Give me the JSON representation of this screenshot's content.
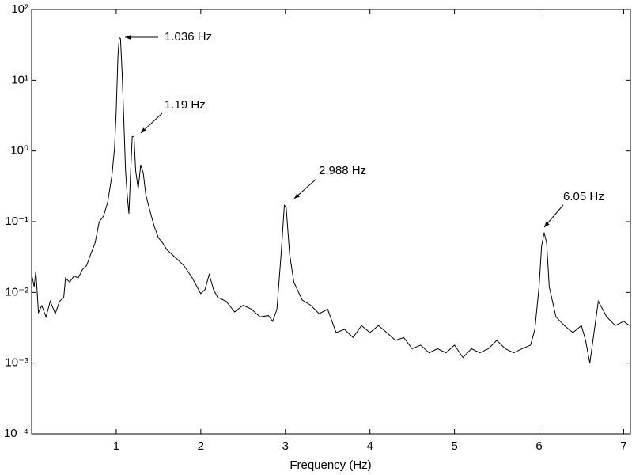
{
  "chart_data": {
    "type": "line",
    "xlabel": "Frequency (Hz)",
    "yscale": "log",
    "grid": false,
    "color": "#000000",
    "x": [
      0.0,
      0.03,
      0.05,
      0.08,
      0.12,
      0.17,
      0.22,
      0.28,
      0.33,
      0.38,
      0.4,
      0.45,
      0.5,
      0.55,
      0.6,
      0.65,
      0.7,
      0.75,
      0.8,
      0.85,
      0.9,
      0.95,
      0.98,
      1.0,
      1.02,
      1.036,
      1.05,
      1.07,
      1.09,
      1.11,
      1.13,
      1.15,
      1.17,
      1.19,
      1.21,
      1.23,
      1.26,
      1.29,
      1.32,
      1.35,
      1.4,
      1.45,
      1.5,
      1.55,
      1.6,
      1.7,
      1.8,
      1.9,
      2.0,
      2.05,
      2.1,
      2.15,
      2.2,
      2.3,
      2.4,
      2.5,
      2.6,
      2.7,
      2.8,
      2.85,
      2.9,
      2.95,
      2.988,
      3.01,
      3.05,
      3.1,
      3.2,
      3.3,
      3.4,
      3.5,
      3.6,
      3.7,
      3.8,
      3.9,
      4.0,
      4.1,
      4.2,
      4.3,
      4.4,
      4.5,
      4.6,
      4.7,
      4.8,
      4.9,
      5.0,
      5.1,
      5.2,
      5.3,
      5.4,
      5.5,
      5.6,
      5.7,
      5.8,
      5.9,
      5.95,
      6.0,
      6.03,
      6.06,
      6.09,
      6.12,
      6.2,
      6.3,
      6.4,
      6.5,
      6.55,
      6.6,
      6.65,
      6.7,
      6.8,
      6.9,
      7.0,
      7.07
    ],
    "values": [
      0.018,
      0.012,
      0.02,
      0.0052,
      0.0065,
      0.0045,
      0.0075,
      0.005,
      0.0075,
      0.0085,
      0.016,
      0.014,
      0.017,
      0.016,
      0.021,
      0.024,
      0.035,
      0.05,
      0.1,
      0.12,
      0.19,
      0.46,
      1.1,
      3.6,
      22,
      40,
      39,
      13,
      2.8,
      0.53,
      0.24,
      0.13,
      0.49,
      1.6,
      1.6,
      0.53,
      0.29,
      0.63,
      0.49,
      0.24,
      0.14,
      0.086,
      0.059,
      0.05,
      0.04,
      0.031,
      0.024,
      0.016,
      0.0096,
      0.011,
      0.018,
      0.011,
      0.0085,
      0.0075,
      0.0053,
      0.0066,
      0.0058,
      0.0045,
      0.0047,
      0.0039,
      0.0058,
      0.035,
      0.17,
      0.16,
      0.035,
      0.014,
      0.0078,
      0.0066,
      0.005,
      0.0058,
      0.0027,
      0.003,
      0.0023,
      0.0034,
      0.0027,
      0.0034,
      0.0027,
      0.0021,
      0.0023,
      0.0016,
      0.0018,
      0.0014,
      0.0016,
      0.0014,
      0.0018,
      0.0012,
      0.0016,
      0.0014,
      0.0016,
      0.0021,
      0.0016,
      0.0014,
      0.0016,
      0.0018,
      0.003,
      0.012,
      0.045,
      0.07,
      0.05,
      0.012,
      0.0045,
      0.0034,
      0.0027,
      0.0034,
      0.0021,
      0.001,
      0.0027,
      0.0075,
      0.0045,
      0.0034,
      0.0039,
      0.0034
    ],
    "xlim": [
      0,
      7.08
    ],
    "xticks": [
      1,
      2,
      3,
      4,
      5,
      6,
      7
    ],
    "ylim": [
      0.0001,
      100
    ],
    "yticks": [
      {
        "value": 0.0001,
        "label": "10⁻⁴"
      },
      {
        "value": 0.001,
        "label": "10⁻³"
      },
      {
        "value": 0.01,
        "label": "10⁻²"
      },
      {
        "value": 0.1,
        "label": "10⁻¹"
      },
      {
        "value": 1,
        "label": "10⁰"
      },
      {
        "value": 10,
        "label": "10¹"
      },
      {
        "value": 100,
        "label": "10²"
      }
    ],
    "annotations": [
      "1.036 Hz",
      "1.19 Hz",
      "2.988 Hz",
      "6.05 Hz"
    ]
  }
}
